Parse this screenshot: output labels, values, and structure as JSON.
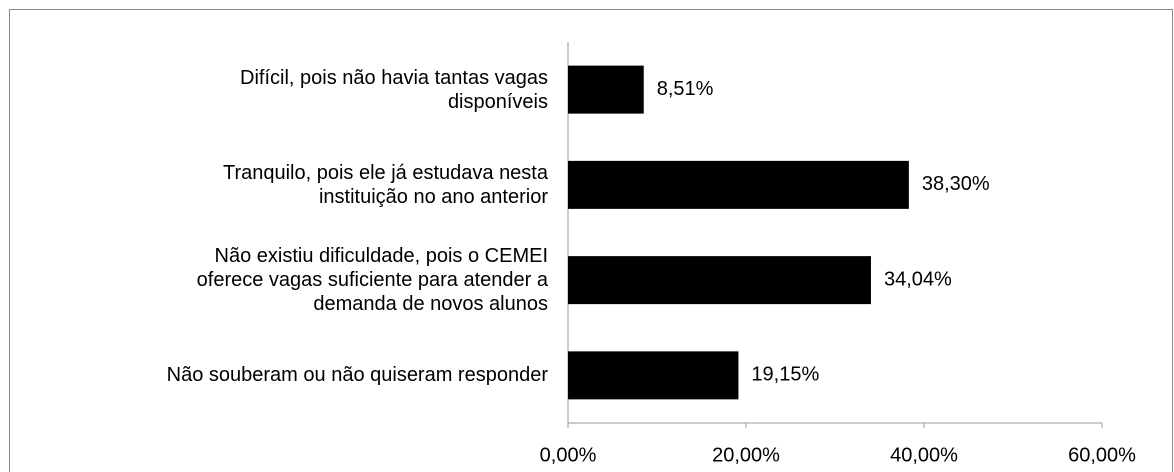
{
  "chart_data": {
    "type": "bar",
    "orientation": "horizontal",
    "categories": [
      "Difícil, pois não havia tantas vagas\ndisponíveis",
      "Tranquilo, pois ele já estudava nesta\ninstituição no ano anterior",
      "Não existiu dificuldade, pois o CEMEI\noferece vagas suficiente para atender a\ndemanda de novos alunos",
      "Não souberam ou não quiseram responder"
    ],
    "values": [
      8.51,
      38.3,
      34.04,
      19.15
    ],
    "value_labels": [
      "8,51%",
      "38,30%",
      "34,04%",
      "19,15%"
    ],
    "color": "#000000",
    "xlim": [
      0,
      60
    ],
    "xticks": [
      {
        "value": 0,
        "label": "0,00%"
      },
      {
        "value": 20,
        "label": "20,00%"
      },
      {
        "value": 40,
        "label": "40,00%"
      },
      {
        "value": 60,
        "label": "60,00%"
      }
    ],
    "grid": false
  }
}
